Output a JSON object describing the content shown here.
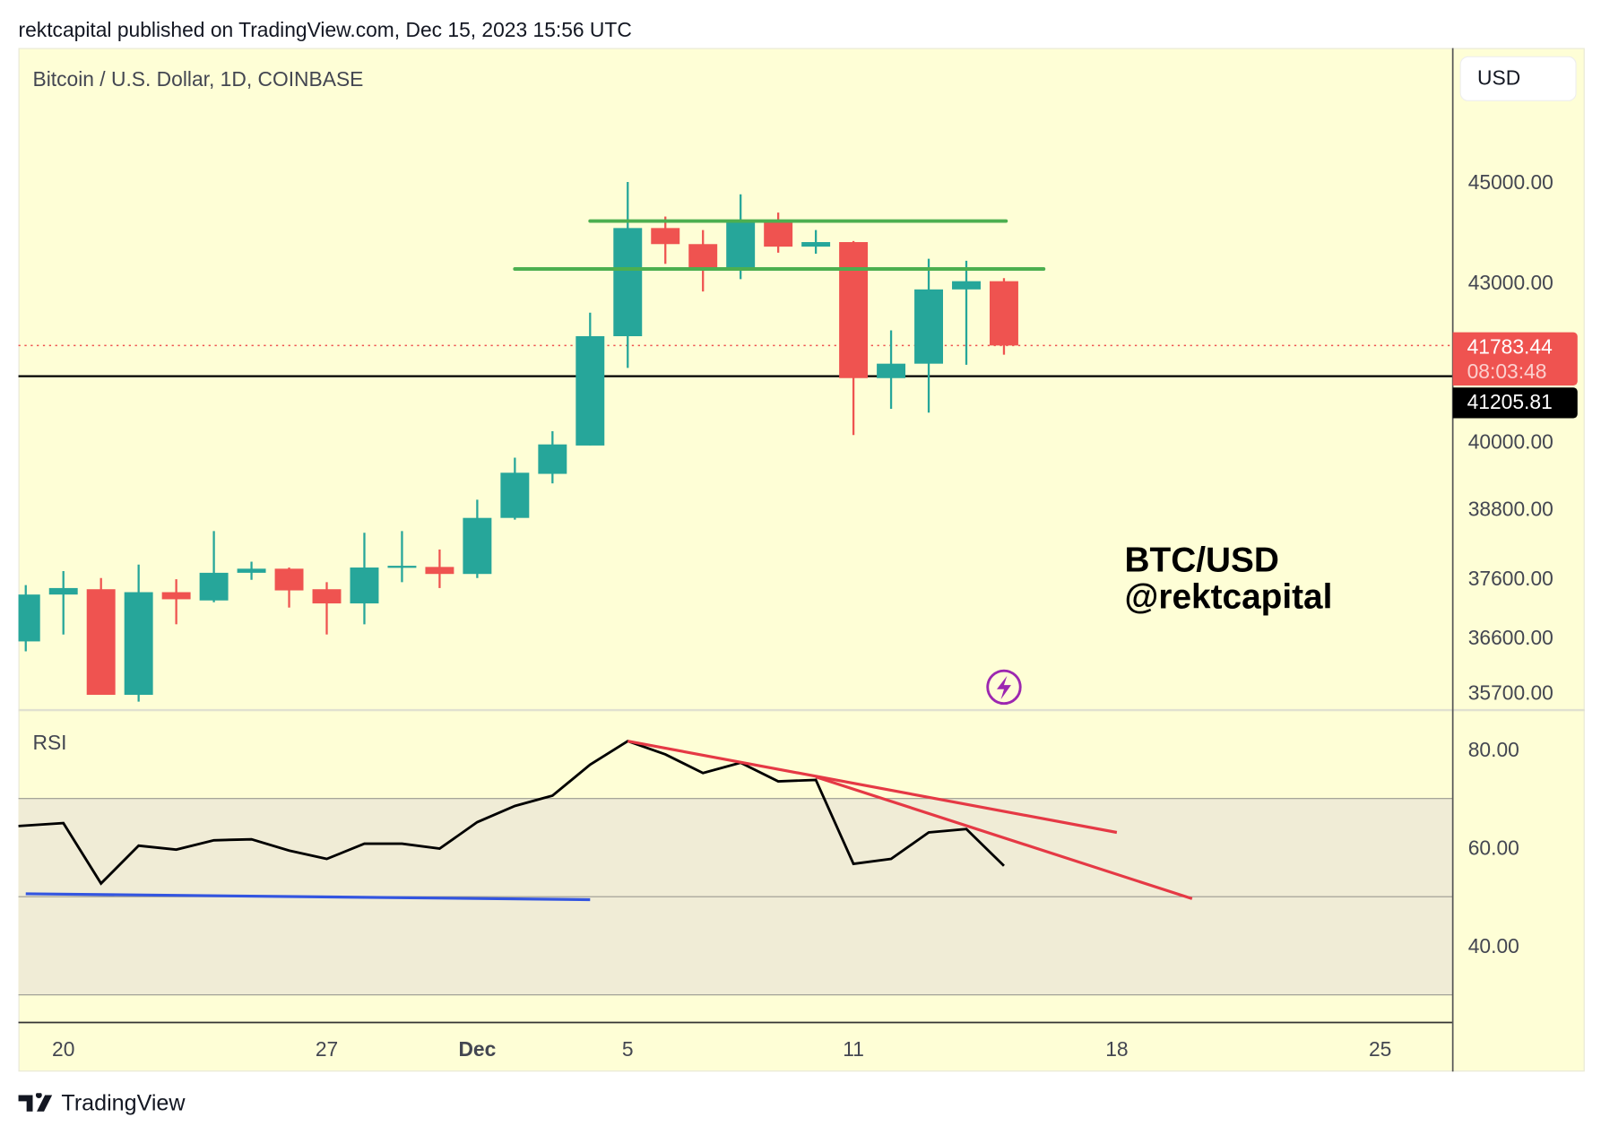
{
  "header": {
    "text": "rektcapital published on TradingView.com, Dec 15, 2023 15:56 UTC"
  },
  "symbol_title": "Bitcoin / U.S. Dollar, 1D, COINBASE",
  "currency_button": "USD",
  "watermark": {
    "line1": "BTC/USD",
    "line2": "@rektcapital"
  },
  "footer": {
    "brand": "TradingView"
  },
  "colors": {
    "up": "#26a69a",
    "down": "#ef5350",
    "background": "#fefed6",
    "support_lines": "#4caf50",
    "rsi_trendlines": "#e53945",
    "blue_trendline": "#3355e0",
    "alert_icon": "#9c27b0"
  },
  "icons": {
    "alert": "lightning-bolt-icon",
    "logo": "tradingview-logo-icon"
  },
  "chart_data": [
    {
      "type": "candlestick",
      "title": "Bitcoin / U.S. Dollar, 1D, COINBASE",
      "y_scale": "log",
      "ylim": [
        35500,
        46200
      ],
      "y_ticks": [
        {
          "v": 45000,
          "label": "45000.00"
        },
        {
          "v": 43000,
          "label": "43000.00"
        },
        {
          "v": 40000,
          "label": "40000.00"
        },
        {
          "v": 38800,
          "label": "38800.00"
        },
        {
          "v": 37600,
          "label": "37600.00"
        },
        {
          "v": 36600,
          "label": "36600.00"
        },
        {
          "v": 35700,
          "label": "35700.00"
        }
      ],
      "x_ticks": [
        {
          "date": "2023-11-20",
          "label": "20"
        },
        {
          "date": "2023-11-27",
          "label": "27"
        },
        {
          "date": "2023-12-01",
          "label": "Dec"
        },
        {
          "date": "2023-12-05",
          "label": "5"
        },
        {
          "date": "2023-12-11",
          "label": "11"
        },
        {
          "date": "2023-12-18",
          "label": "18"
        },
        {
          "date": "2023-12-25",
          "label": "25"
        }
      ],
      "candles": [
        {
          "date": "2023-11-19",
          "o": 36535,
          "h": 37480,
          "l": 36370,
          "c": 37320
        },
        {
          "date": "2023-11-20",
          "o": 37320,
          "h": 37720,
          "l": 36650,
          "c": 37430
        },
        {
          "date": "2023-11-21",
          "o": 37410,
          "h": 37600,
          "l": 35660,
          "c": 35660
        },
        {
          "date": "2023-11-22",
          "o": 35660,
          "h": 37830,
          "l": 35550,
          "c": 37360
        },
        {
          "date": "2023-11-23",
          "o": 37360,
          "h": 37580,
          "l": 36820,
          "c": 37240
        },
        {
          "date": "2023-11-24",
          "o": 37220,
          "h": 38410,
          "l": 37190,
          "c": 37690
        },
        {
          "date": "2023-11-25",
          "o": 37690,
          "h": 37880,
          "l": 37570,
          "c": 37760
        },
        {
          "date": "2023-11-26",
          "o": 37760,
          "h": 37780,
          "l": 37100,
          "c": 37390
        },
        {
          "date": "2023-11-27",
          "o": 37410,
          "h": 37530,
          "l": 36650,
          "c": 37170
        },
        {
          "date": "2023-11-28",
          "o": 37170,
          "h": 38380,
          "l": 36820,
          "c": 37780
        },
        {
          "date": "2023-11-29",
          "o": 37780,
          "h": 38410,
          "l": 37530,
          "c": 37810
        },
        {
          "date": "2023-11-30",
          "o": 37790,
          "h": 38090,
          "l": 37430,
          "c": 37670
        },
        {
          "date": "2023-12-01",
          "o": 37670,
          "h": 38960,
          "l": 37600,
          "c": 38640
        },
        {
          "date": "2023-12-02",
          "o": 38640,
          "h": 39710,
          "l": 38610,
          "c": 39440
        },
        {
          "date": "2023-12-03",
          "o": 39420,
          "h": 40190,
          "l": 39250,
          "c": 39950
        },
        {
          "date": "2023-12-04",
          "o": 39930,
          "h": 42410,
          "l": 39930,
          "c": 41960
        },
        {
          "date": "2023-12-05",
          "o": 41960,
          "h": 45000,
          "l": 41360,
          "c": 44070
        },
        {
          "date": "2023-12-06",
          "o": 44070,
          "h": 44300,
          "l": 43360,
          "c": 43750
        },
        {
          "date": "2023-12-07",
          "o": 43750,
          "h": 44030,
          "l": 42820,
          "c": 43260
        },
        {
          "date": "2023-12-08",
          "o": 43260,
          "h": 44750,
          "l": 43060,
          "c": 44190
        },
        {
          "date": "2023-12-09",
          "o": 44190,
          "h": 44380,
          "l": 43580,
          "c": 43700
        },
        {
          "date": "2023-12-10",
          "o": 43700,
          "h": 44030,
          "l": 43560,
          "c": 43790
        },
        {
          "date": "2023-12-11",
          "o": 43790,
          "h": 43810,
          "l": 40120,
          "c": 41170
        },
        {
          "date": "2023-12-12",
          "o": 41170,
          "h": 42070,
          "l": 40600,
          "c": 41440
        },
        {
          "date": "2023-12-13",
          "o": 41440,
          "h": 43460,
          "l": 40530,
          "c": 42860
        },
        {
          "date": "2023-12-14",
          "o": 42860,
          "h": 43420,
          "l": 41420,
          "c": 43020
        },
        {
          "date": "2023-12-15",
          "o": 43020,
          "h": 43080,
          "l": 41610,
          "c": 41783.44
        }
      ],
      "last_price": {
        "value": 41783.44,
        "label": "41783.44",
        "countdown": "08:03:48"
      },
      "horizontal_line": {
        "value": 41205.81,
        "label": "41205.81"
      },
      "support_lines": [
        {
          "from": "2023-12-04",
          "to": "2023-12-15",
          "value": 44210
        },
        {
          "from": "2023-12-02",
          "to": "2023-12-16",
          "value": 43260
        }
      ]
    },
    {
      "type": "line",
      "title": "RSI",
      "ylim": [
        24.5,
        88
      ],
      "y_ticks": [
        {
          "v": 80,
          "label": "80.00"
        },
        {
          "v": 60,
          "label": "60.00"
        },
        {
          "v": 40,
          "label": "40.00"
        }
      ],
      "bands": {
        "upper": 70,
        "middle": 50,
        "lower": 30
      },
      "values": [
        64.4,
        65.0,
        52.7,
        60.4,
        59.6,
        61.5,
        61.7,
        59.4,
        57.7,
        60.8,
        60.8,
        59.8,
        65.2,
        68.5,
        70.6,
        76.9,
        81.7,
        79.0,
        75.2,
        77.3,
        73.5,
        73.8,
        56.7,
        57.7,
        63.1,
        63.8,
        56.3
      ],
      "trendlines": [
        {
          "color": "red",
          "from": {
            "date": "2023-12-05",
            "v": 81.7
          },
          "to": {
            "date": "2023-12-18",
            "v": 63.1
          }
        },
        {
          "color": "red",
          "from": {
            "date": "2023-12-10",
            "v": 74.4
          },
          "to": {
            "date": "2023-12-20",
            "v": 49.6
          }
        },
        {
          "color": "blue",
          "from": {
            "date": "2023-11-19",
            "v": 50.6
          },
          "to": {
            "date": "2023-12-04",
            "v": 49.4
          }
        }
      ]
    }
  ]
}
